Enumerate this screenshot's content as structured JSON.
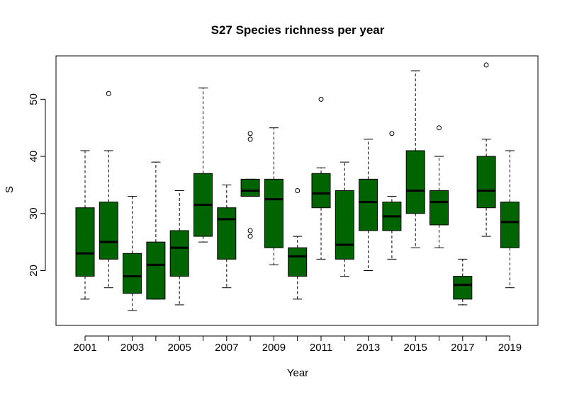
{
  "chart_data": {
    "type": "boxplot",
    "title": "S27 Species richness per year",
    "xlabel": "Year",
    "ylabel": "S",
    "ylim": [
      10.4,
      57.6
    ],
    "y_ticks": [
      20,
      30,
      40,
      50
    ],
    "x_tick_labels_shown": [
      "2001",
      "2003",
      "2005",
      "2007",
      "2009",
      "2011",
      "2013",
      "2015",
      "2017",
      "2019"
    ],
    "fill_color": "#006400",
    "median_color": "#000000",
    "grid": false,
    "categories": [
      "2001",
      "2002",
      "2003",
      "2004",
      "2005",
      "2006",
      "2007",
      "2008",
      "2009",
      "2010",
      "2011",
      "2012",
      "2013",
      "2014",
      "2015",
      "2016",
      "2017",
      "2018",
      "2019"
    ],
    "boxes": [
      {
        "year": "2001",
        "min": 15,
        "q1": 19,
        "median": 23,
        "q3": 31,
        "max": 41,
        "outliers": []
      },
      {
        "year": "2002",
        "min": 17,
        "q1": 22,
        "median": 25,
        "q3": 32,
        "max": 41,
        "outliers": [
          51
        ]
      },
      {
        "year": "2003",
        "min": 13,
        "q1": 16,
        "median": 19,
        "q3": 23,
        "max": 33,
        "outliers": []
      },
      {
        "year": "2004",
        "min": 15,
        "q1": 15,
        "median": 21,
        "q3": 25,
        "max": 39,
        "outliers": []
      },
      {
        "year": "2005",
        "min": 14,
        "q1": 19,
        "median": 24,
        "q3": 27,
        "max": 34,
        "outliers": []
      },
      {
        "year": "2006",
        "min": 25,
        "q1": 26,
        "median": 31.5,
        "q3": 37,
        "max": 52,
        "outliers": []
      },
      {
        "year": "2007",
        "min": 17,
        "q1": 22,
        "median": 29,
        "q3": 31,
        "max": 35,
        "outliers": []
      },
      {
        "year": "2008",
        "min": 33,
        "q1": 33,
        "median": 34,
        "q3": 36,
        "max": 36,
        "outliers": [
          26,
          27,
          43,
          44
        ]
      },
      {
        "year": "2009",
        "min": 21,
        "q1": 24,
        "median": 32.5,
        "q3": 36,
        "max": 45,
        "outliers": []
      },
      {
        "year": "2010",
        "min": 15,
        "q1": 19,
        "median": 22.5,
        "q3": 24,
        "max": 26,
        "outliers": [
          34
        ]
      },
      {
        "year": "2011",
        "min": 22,
        "q1": 31,
        "median": 33.5,
        "q3": 37,
        "max": 38,
        "outliers": [
          50
        ]
      },
      {
        "year": "2012",
        "min": 19,
        "q1": 22,
        "median": 24.5,
        "q3": 34,
        "max": 39,
        "outliers": []
      },
      {
        "year": "2013",
        "min": 20,
        "q1": 27,
        "median": 32,
        "q3": 36,
        "max": 43,
        "outliers": []
      },
      {
        "year": "2014",
        "min": 22,
        "q1": 27,
        "median": 29.5,
        "q3": 32,
        "max": 33,
        "outliers": [
          44
        ]
      },
      {
        "year": "2015",
        "min": 24,
        "q1": 30,
        "median": 34,
        "q3": 41,
        "max": 55,
        "outliers": []
      },
      {
        "year": "2016",
        "min": 24,
        "q1": 28,
        "median": 32,
        "q3": 34,
        "max": 40,
        "outliers": [
          45
        ]
      },
      {
        "year": "2017",
        "min": 14,
        "q1": 15,
        "median": 17.5,
        "q3": 19,
        "max": 22,
        "outliers": []
      },
      {
        "year": "2018",
        "min": 26,
        "q1": 31,
        "median": 34,
        "q3": 40,
        "max": 43,
        "outliers": [
          56
        ]
      },
      {
        "year": "2019",
        "min": 17,
        "q1": 24,
        "median": 28.5,
        "q3": 32,
        "max": 41,
        "outliers": []
      }
    ]
  }
}
